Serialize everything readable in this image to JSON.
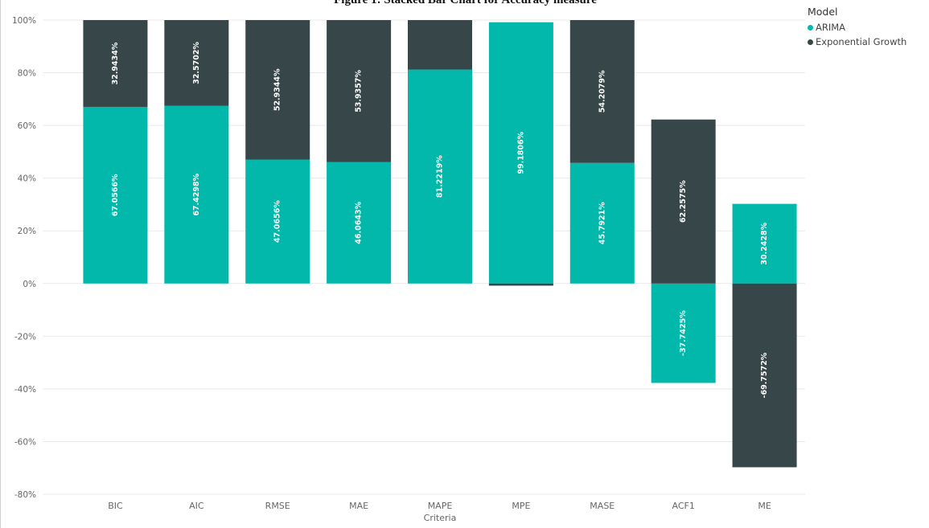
{
  "chart_data": {
    "type": "bar",
    "stacked": true,
    "title": "Figure 1: Stacked Bar Chart for Accuracy measure",
    "xlabel": "Criteria",
    "ylabel": "",
    "ylim": [
      -80,
      100
    ],
    "yticks": [
      100,
      80,
      60,
      40,
      20,
      0,
      -20,
      -40,
      -60,
      -80
    ],
    "ytick_labels": [
      "100%",
      "80%",
      "60%",
      "40%",
      "20%",
      "0%",
      "-20%",
      "-40%",
      "-60%",
      "-80%"
    ],
    "grid": true,
    "legend": {
      "title": "Model",
      "position": "top-right"
    },
    "categories": [
      "BIC",
      "AIC",
      "RMSE",
      "MAE",
      "MAPE",
      "MPE",
      "MASE",
      "ACF1",
      "ME"
    ],
    "series": [
      {
        "name": "ARIMA",
        "color": "#01b8aa",
        "values": [
          67.0566,
          67.4298,
          47.0656,
          46.0643,
          81.2219,
          99.1806,
          45.7921,
          -37.7425,
          30.2428
        ],
        "labels": [
          "67.0566%",
          "67.4298%",
          "47.0656%",
          "46.0643%",
          "81.2219%",
          "99.1806%",
          "45.7921%",
          "-37.7425%",
          "30.2428%"
        ]
      },
      {
        "name": "Exponential Growth",
        "color": "#374649",
        "values": [
          32.9434,
          32.5702,
          52.9344,
          53.9357,
          18.7781,
          -0.8194,
          54.2079,
          62.2575,
          -69.7572
        ],
        "labels": [
          "32.9434%",
          "32.5702%",
          "52.9344%",
          "53.9357%",
          "",
          "",
          "54.2079%",
          "62.2575%",
          "-69.7572%"
        ]
      }
    ]
  }
}
